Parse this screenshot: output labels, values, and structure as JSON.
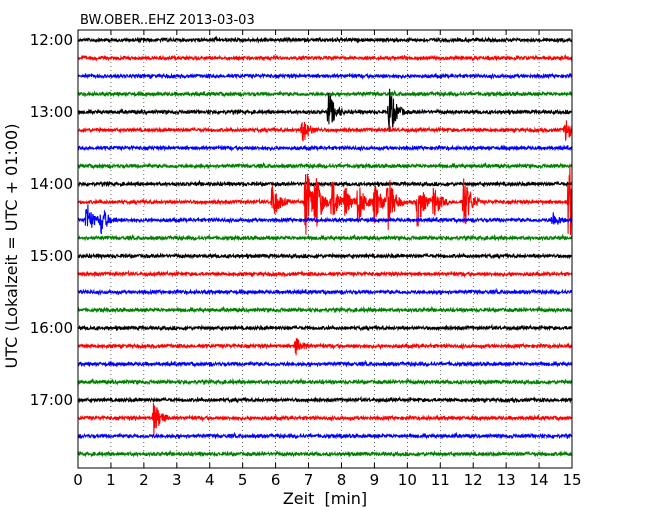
{
  "chart_data": {
    "type": "line",
    "title": "BW.OBER..EHZ 2013-03-03",
    "xlabel": "Zeit  [min]",
    "ylabel": "UTC (Lokalzeit = UTC + 01:00)",
    "xlim": [
      0,
      15
    ],
    "x_ticks": [
      "0",
      "1",
      "2",
      "3",
      "4",
      "5",
      "6",
      "7",
      "8",
      "9",
      "10",
      "11",
      "12",
      "13",
      "14",
      "15"
    ],
    "y_ticks": [
      {
        "label": "12:00",
        "row": 0
      },
      {
        "label": "13:00",
        "row": 4
      },
      {
        "label": "14:00",
        "row": 8
      },
      {
        "label": "15:00",
        "row": 12
      },
      {
        "label": "16:00",
        "row": 16
      },
      {
        "label": "17:00",
        "row": 20
      }
    ],
    "row_interval_minutes": 15,
    "grid": true,
    "colors": [
      "#000000",
      "#ff0000",
      "#0000ff",
      "#008000"
    ],
    "traces": [
      {
        "start": "12:00",
        "color_index": 0,
        "events": []
      },
      {
        "start": "12:15",
        "color_index": 1,
        "events": []
      },
      {
        "start": "12:30",
        "color_index": 2,
        "events": []
      },
      {
        "start": "12:45",
        "color_index": 3,
        "events": []
      },
      {
        "start": "13:00",
        "color_index": 0,
        "events": [
          {
            "t": 7.6,
            "amp": 0.7
          },
          {
            "t": 9.45,
            "amp": 0.9
          }
        ]
      },
      {
        "start": "13:15",
        "color_index": 1,
        "events": [
          {
            "t": 6.8,
            "amp": 0.5
          },
          {
            "t": 14.8,
            "amp": 0.4
          }
        ]
      },
      {
        "start": "13:30",
        "color_index": 2,
        "events": []
      },
      {
        "start": "13:45",
        "color_index": 3,
        "events": []
      },
      {
        "start": "14:00",
        "color_index": 0,
        "events": []
      },
      {
        "start": "14:15",
        "color_index": 1,
        "events": [
          {
            "t": 5.9,
            "amp": 0.7
          },
          {
            "t": 6.9,
            "amp": 1.4
          },
          {
            "t": 7.2,
            "amp": 1.0
          },
          {
            "t": 7.7,
            "amp": 0.9
          },
          {
            "t": 8.1,
            "amp": 0.5
          },
          {
            "t": 8.5,
            "amp": 0.8
          },
          {
            "t": 9.0,
            "amp": 0.7
          },
          {
            "t": 9.4,
            "amp": 1.0
          },
          {
            "t": 10.3,
            "amp": 0.9
          },
          {
            "t": 10.8,
            "amp": 0.6
          },
          {
            "t": 11.7,
            "amp": 1.1
          },
          {
            "t": 14.9,
            "amp": 1.6
          }
        ]
      },
      {
        "start": "14:30",
        "color_index": 2,
        "events": [
          {
            "t": 0.25,
            "amp": 0.6
          },
          {
            "t": 0.7,
            "amp": 0.5
          },
          {
            "t": 14.4,
            "amp": 0.3
          }
        ]
      },
      {
        "start": "14:45",
        "color_index": 3,
        "events": []
      },
      {
        "start": "15:00",
        "color_index": 0,
        "events": []
      },
      {
        "start": "15:15",
        "color_index": 1,
        "events": []
      },
      {
        "start": "15:30",
        "color_index": 2,
        "events": []
      },
      {
        "start": "15:45",
        "color_index": 3,
        "events": []
      },
      {
        "start": "16:00",
        "color_index": 0,
        "events": []
      },
      {
        "start": "16:15",
        "color_index": 1,
        "events": [
          {
            "t": 6.6,
            "amp": 0.3
          }
        ]
      },
      {
        "start": "16:30",
        "color_index": 2,
        "events": []
      },
      {
        "start": "16:45",
        "color_index": 3,
        "events": []
      },
      {
        "start": "17:00",
        "color_index": 0,
        "events": []
      },
      {
        "start": "17:15",
        "color_index": 1,
        "events": [
          {
            "t": 2.3,
            "amp": 0.6
          }
        ]
      },
      {
        "start": "17:30",
        "color_index": 2,
        "events": []
      },
      {
        "start": "17:45",
        "color_index": 3,
        "events": []
      }
    ]
  }
}
